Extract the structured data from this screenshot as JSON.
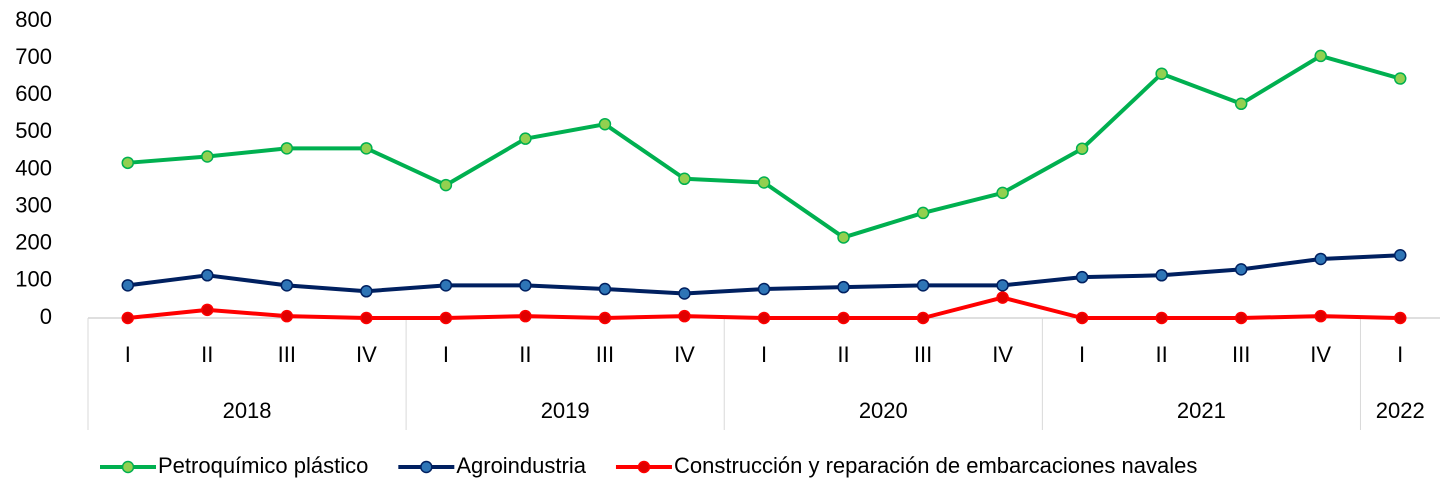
{
  "chart_data": {
    "type": "line",
    "groups": [
      {
        "label": "2018",
        "categories": [
          "I",
          "II",
          "III",
          "IV"
        ]
      },
      {
        "label": "2019",
        "categories": [
          "I",
          "II",
          "III",
          "IV"
        ]
      },
      {
        "label": "2020",
        "categories": [
          "I",
          "II",
          "III",
          "IV"
        ]
      },
      {
        "label": "2021",
        "categories": [
          "I",
          "II",
          "III",
          "IV"
        ]
      },
      {
        "label": "2022",
        "categories": [
          "I"
        ]
      }
    ],
    "series": [
      {
        "name": "Petroquímico plástico",
        "color": "#00b050",
        "marker_color": "#92d050",
        "values": [
          418,
          435,
          457,
          457,
          358,
          483,
          522,
          375,
          365,
          217,
          283,
          337,
          456,
          658,
          577,
          706,
          645
        ]
      },
      {
        "name": "Agroindustria",
        "color": "#002060",
        "marker_color": "#2e75b6",
        "values": [
          88,
          115,
          88,
          72,
          88,
          88,
          78,
          66,
          78,
          83,
          88,
          88,
          110,
          115,
          131,
          159,
          169
        ]
      },
      {
        "name": "Construcción y reparación de embarcaciones navales",
        "color": "#ff0000",
        "marker_color": "#e00000",
        "values": [
          0,
          22,
          5,
          0,
          0,
          5,
          0,
          5,
          0,
          0,
          0,
          55,
          0,
          0,
          0,
          5,
          0
        ]
      }
    ],
    "ylim": [
      0,
      800
    ],
    "yticks": [
      0,
      100,
      200,
      300,
      400,
      500,
      600,
      700,
      800
    ],
    "grid": false
  }
}
